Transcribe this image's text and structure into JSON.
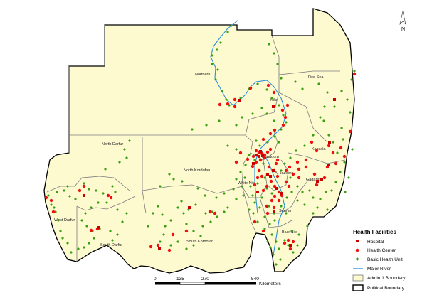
{
  "map": {
    "regions": [
      "Northern",
      "Red Sea",
      "Nile",
      "North Darfur",
      "North Kordofan",
      "Khartoum",
      "Kassala",
      "Al-Jazeera",
      "White Nile",
      "Gadaref",
      "Sennar",
      "Blue Nile",
      "West Darfur",
      "South Darfur",
      "South Kordofan"
    ],
    "north_arrow": "N",
    "colors": {
      "land": "#fefad0",
      "boundary": "#6e6e6e",
      "political_boundary": "#000000",
      "river": "#2a8fd8",
      "hospital": "#c80000",
      "health_center": "#ee1111",
      "basic_health_unit": "#3aa012"
    }
  },
  "legend": {
    "title": "Health Facilities",
    "items": [
      {
        "label": "Hospital",
        "symbol": "square"
      },
      {
        "label": "Health Center",
        "symbol": "circle"
      },
      {
        "label": "Basic Health Unit",
        "symbol": "diamond"
      },
      {
        "label": "Major River",
        "symbol": "line"
      },
      {
        "label": "Admin 1 Boundary",
        "symbol": "box"
      },
      {
        "label": "Political Boundary",
        "symbol": "box-bold"
      }
    ]
  },
  "scale_bar": {
    "ticks": [
      "0",
      "135",
      "270",
      "540"
    ],
    "unit": "Kilometers"
  }
}
